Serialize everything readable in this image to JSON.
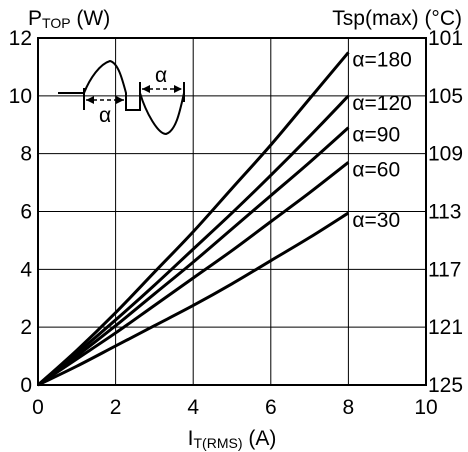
{
  "chart_data": {
    "type": "line",
    "ylabel": {
      "main": "P",
      "sub": "TOP",
      "rest": " (W)"
    },
    "y2label": "Tsp(max) (°C)",
    "xlabel": {
      "main": "I",
      "sub": "T(RMS)",
      "rest": " (A)"
    },
    "xlim": [
      0,
      10
    ],
    "ylim": [
      0,
      12
    ],
    "grid": true,
    "x_ticks": [
      0,
      2,
      4,
      6,
      8,
      10
    ],
    "y_ticks": [
      0,
      2,
      4,
      6,
      8,
      10,
      12
    ],
    "y2_ticks": [
      {
        "y": 12,
        "label": "101"
      },
      {
        "y": 10,
        "label": "105"
      },
      {
        "y": 8,
        "label": "109"
      },
      {
        "y": 6,
        "label": "113"
      },
      {
        "y": 4,
        "label": "117"
      },
      {
        "y": 2,
        "label": "121"
      },
      {
        "y": 0,
        "label": "125"
      }
    ],
    "series": [
      {
        "name": "α=180",
        "x": [
          0,
          1,
          2,
          3,
          4,
          5,
          6,
          7,
          8
        ],
        "y": [
          0,
          1.2,
          2.5,
          3.9,
          5.3,
          6.8,
          8.3,
          9.9,
          11.5
        ]
      },
      {
        "name": "α=120",
        "x": [
          0,
          1,
          2,
          3,
          4,
          5,
          6,
          7,
          8
        ],
        "y": [
          0,
          1.1,
          2.25,
          3.45,
          4.7,
          5.95,
          7.25,
          8.6,
          10.0
        ]
      },
      {
        "name": "α=90",
        "x": [
          0,
          1,
          2,
          3,
          4,
          5,
          6,
          7,
          8
        ],
        "y": [
          0,
          1.0,
          2.05,
          3.15,
          4.25,
          5.4,
          6.55,
          7.7,
          8.9
        ]
      },
      {
        "name": "α=60",
        "x": [
          0,
          1,
          2,
          3,
          4,
          5,
          6,
          7,
          8
        ],
        "y": [
          0,
          0.9,
          1.8,
          2.75,
          3.7,
          4.65,
          5.65,
          6.65,
          7.7
        ]
      },
      {
        "name": "α=30",
        "x": [
          0,
          1,
          2,
          3,
          4,
          5,
          6,
          7,
          8
        ],
        "y": [
          0,
          0.65,
          1.35,
          2.05,
          2.75,
          3.5,
          4.3,
          5.1,
          5.95
        ]
      }
    ],
    "inset_label": "α"
  }
}
